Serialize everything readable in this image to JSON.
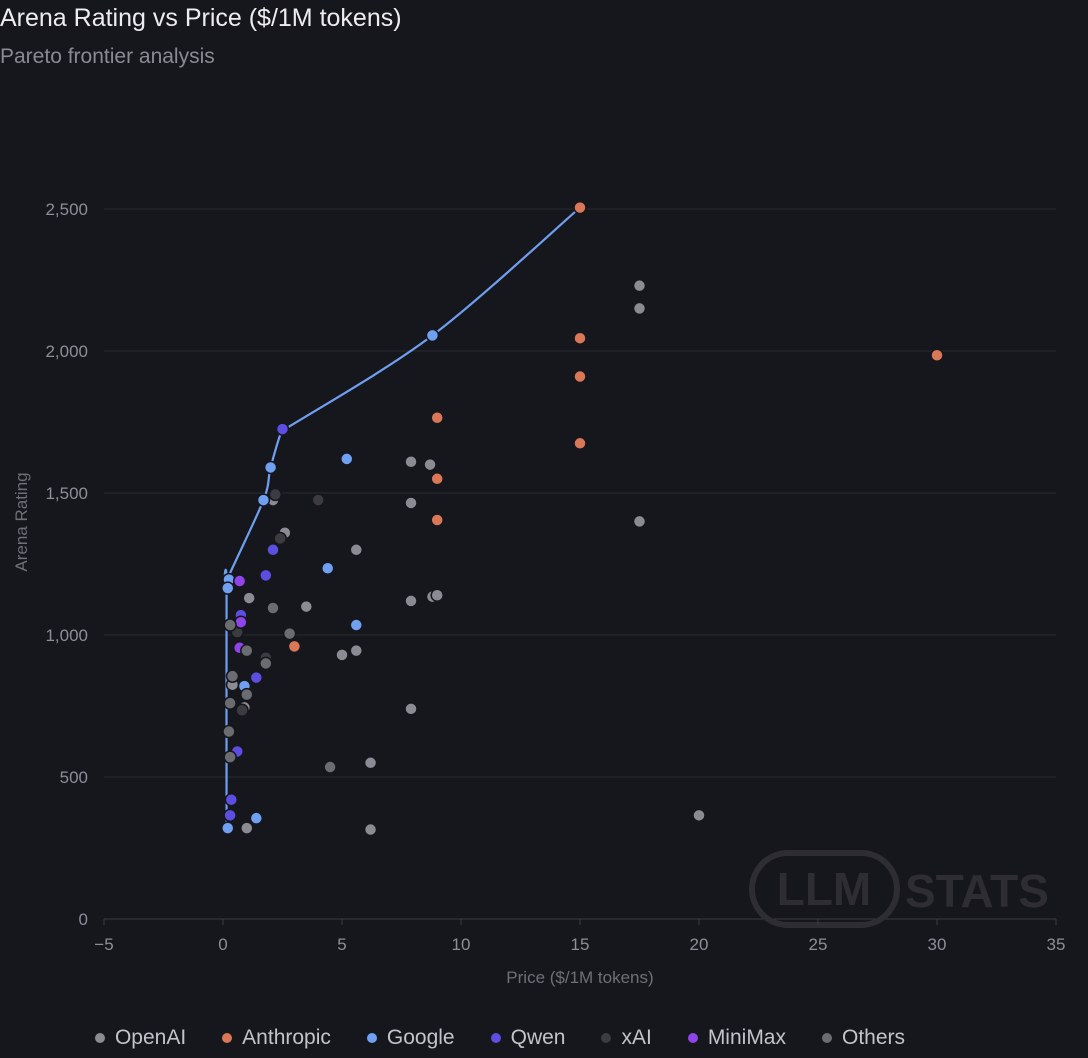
{
  "header": {
    "title": "Arena Rating vs Price ($/1M tokens)",
    "subtitle": "Pareto frontier analysis"
  },
  "watermark": {
    "part1": "LLM",
    "part2": "STATS"
  },
  "colors": {
    "OpenAI": "#8b8b93",
    "Anthropic": "#d97757",
    "Google": "#6fa0f2",
    "Qwen": "#5c4ee0",
    "xAI": "#3b3b40",
    "MiniMax": "#8e44e8",
    "Others": "#6b6b72",
    "frontier": "#6f9ff0"
  },
  "legend": [
    {
      "label": "OpenAI",
      "key": "OpenAI"
    },
    {
      "label": "Anthropic",
      "key": "Anthropic"
    },
    {
      "label": "Google",
      "key": "Google"
    },
    {
      "label": "Qwen",
      "key": "Qwen"
    },
    {
      "label": "xAI",
      "key": "xAI"
    },
    {
      "label": "MiniMax",
      "key": "MiniMax"
    },
    {
      "label": "Others",
      "key": "Others"
    }
  ],
  "chart_data": {
    "type": "scatter",
    "title": "Arena Rating vs Price ($/1M tokens)",
    "subtitle": "Pareto frontier analysis",
    "xlabel": "Price ($/1M tokens)",
    "ylabel": "Arena Rating",
    "xlim": [
      -5,
      35
    ],
    "ylim": [
      0,
      2500
    ],
    "xticks": [
      -5,
      0,
      5,
      10,
      15,
      20,
      25,
      30,
      35
    ],
    "yticks": [
      0,
      500,
      1000,
      1500,
      2000,
      2500
    ],
    "xtick_labels": [
      "−5",
      "0",
      "5",
      "10",
      "15",
      "20",
      "25",
      "30",
      "35"
    ],
    "ytick_labels": [
      "0",
      "500",
      "1,000",
      "1,500",
      "2,000",
      "2,500"
    ],
    "grid": "horizontal",
    "legend_position": "bottom",
    "frontier": [
      {
        "x": 0.15,
        "y": 320
      },
      {
        "x": 0.15,
        "y": 1170
      },
      {
        "x": 0.2,
        "y": 1200
      },
      {
        "x": 1.7,
        "y": 1475
      },
      {
        "x": 2.0,
        "y": 1590
      },
      {
        "x": 2.5,
        "y": 1725
      },
      {
        "x": 2.9,
        "y": 1740
      },
      {
        "x": 8.8,
        "y": 2055
      },
      {
        "x": 15.0,
        "y": 2505
      }
    ],
    "series": [
      {
        "name": "OpenAI",
        "key": "OpenAI",
        "points": [
          {
            "x": 17.5,
            "y": 2230
          },
          {
            "x": 17.5,
            "y": 2150
          },
          {
            "x": 17.5,
            "y": 1400
          },
          {
            "x": 7.9,
            "y": 1610
          },
          {
            "x": 8.7,
            "y": 1600
          },
          {
            "x": 7.9,
            "y": 1465
          },
          {
            "x": 7.9,
            "y": 1120
          },
          {
            "x": 8.8,
            "y": 1135
          },
          {
            "x": 9.0,
            "y": 1140
          },
          {
            "x": 7.9,
            "y": 740
          },
          {
            "x": 5.6,
            "y": 1300
          },
          {
            "x": 5.6,
            "y": 945
          },
          {
            "x": 5.0,
            "y": 930
          },
          {
            "x": 6.2,
            "y": 550
          },
          {
            "x": 6.2,
            "y": 315
          },
          {
            "x": 20.0,
            "y": 365
          },
          {
            "x": 2.6,
            "y": 1360
          },
          {
            "x": 3.5,
            "y": 1100
          },
          {
            "x": 2.1,
            "y": 1475
          },
          {
            "x": 1.1,
            "y": 1130
          },
          {
            "x": 1.0,
            "y": 320
          },
          {
            "x": 0.9,
            "y": 745
          },
          {
            "x": 0.4,
            "y": 825
          }
        ]
      },
      {
        "name": "Anthropic",
        "key": "Anthropic",
        "points": [
          {
            "x": 15.0,
            "y": 2505
          },
          {
            "x": 15.0,
            "y": 2045
          },
          {
            "x": 15.0,
            "y": 1910
          },
          {
            "x": 15.0,
            "y": 1675
          },
          {
            "x": 30.0,
            "y": 1985
          },
          {
            "x": 9.0,
            "y": 1765
          },
          {
            "x": 9.0,
            "y": 1550
          },
          {
            "x": 9.0,
            "y": 1405
          },
          {
            "x": 3.0,
            "y": 960
          }
        ]
      },
      {
        "name": "Google",
        "key": "Google",
        "points": [
          {
            "x": 8.8,
            "y": 2055
          },
          {
            "x": 5.2,
            "y": 1620
          },
          {
            "x": 4.4,
            "y": 1235
          },
          {
            "x": 5.6,
            "y": 1035
          },
          {
            "x": 1.7,
            "y": 1475
          },
          {
            "x": 2.0,
            "y": 1590
          },
          {
            "x": 0.25,
            "y": 1195
          },
          {
            "x": 0.2,
            "y": 1165
          },
          {
            "x": 1.4,
            "y": 355
          },
          {
            "x": 0.2,
            "y": 320
          },
          {
            "x": 0.9,
            "y": 820
          }
        ]
      },
      {
        "name": "Qwen",
        "key": "Qwen",
        "points": [
          {
            "x": 2.5,
            "y": 1725
          },
          {
            "x": 2.1,
            "y": 1300
          },
          {
            "x": 1.8,
            "y": 1210
          },
          {
            "x": 1.4,
            "y": 850
          },
          {
            "x": 0.6,
            "y": 590
          },
          {
            "x": 0.35,
            "y": 420
          },
          {
            "x": 0.3,
            "y": 365
          },
          {
            "x": 0.75,
            "y": 1070
          }
        ]
      },
      {
        "name": "xAI",
        "key": "xAI",
        "points": [
          {
            "x": 4.0,
            "y": 1475
          },
          {
            "x": 2.2,
            "y": 1495
          },
          {
            "x": 2.4,
            "y": 1340
          },
          {
            "x": 1.8,
            "y": 920
          },
          {
            "x": 0.6,
            "y": 1010
          },
          {
            "x": 0.8,
            "y": 735
          }
        ]
      },
      {
        "name": "MiniMax",
        "key": "MiniMax",
        "points": [
          {
            "x": 0.7,
            "y": 1190
          },
          {
            "x": 0.75,
            "y": 1045
          },
          {
            "x": 0.7,
            "y": 955
          }
        ]
      },
      {
        "name": "Others",
        "key": "Others",
        "points": [
          {
            "x": 2.1,
            "y": 1095
          },
          {
            "x": 2.8,
            "y": 1005
          },
          {
            "x": 1.8,
            "y": 900
          },
          {
            "x": 4.5,
            "y": 535
          },
          {
            "x": 0.3,
            "y": 760
          },
          {
            "x": 0.3,
            "y": 570
          },
          {
            "x": 0.25,
            "y": 660
          },
          {
            "x": 0.3,
            "y": 1035
          },
          {
            "x": 1.0,
            "y": 790
          },
          {
            "x": 1.0,
            "y": 945
          },
          {
            "x": 0.4,
            "y": 855
          }
        ]
      }
    ]
  }
}
